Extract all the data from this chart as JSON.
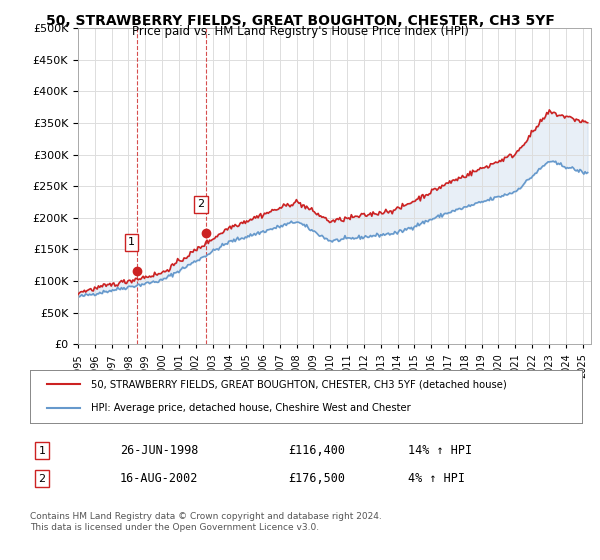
{
  "title": "50, STRAWBERRY FIELDS, GREAT BOUGHTON, CHESTER, CH3 5YF",
  "subtitle": "Price paid vs. HM Land Registry's House Price Index (HPI)",
  "ylabel_ticks": [
    "£0",
    "£50K",
    "£100K",
    "£150K",
    "£200K",
    "£250K",
    "£300K",
    "£350K",
    "£400K",
    "£450K",
    "£500K"
  ],
  "ytick_values": [
    0,
    50000,
    100000,
    150000,
    200000,
    250000,
    300000,
    350000,
    400000,
    450000,
    500000
  ],
  "ylim": [
    0,
    500000
  ],
  "xlim_start": 1995.0,
  "xlim_end": 2025.5,
  "hpi_color": "#6699cc",
  "price_color": "#cc2222",
  "sale1_x": 1998.48,
  "sale1_y": 116400,
  "sale2_x": 2002.62,
  "sale2_y": 176500,
  "sale1_label": "1",
  "sale2_label": "2",
  "legend_line1": "50, STRAWBERRY FIELDS, GREAT BOUGHTON, CHESTER, CH3 5YF (detached house)",
  "legend_line2": "HPI: Average price, detached house, Cheshire West and Chester",
  "table_row1_num": "1",
  "table_row1_date": "26-JUN-1998",
  "table_row1_price": "£116,400",
  "table_row1_hpi": "14% ↑ HPI",
  "table_row2_num": "2",
  "table_row2_date": "16-AUG-2002",
  "table_row2_price": "£176,500",
  "table_row2_hpi": "4% ↑ HPI",
  "footer": "Contains HM Land Registry data © Crown copyright and database right 2024.\nThis data is licensed under the Open Government Licence v3.0.",
  "background_color": "#ffffff",
  "plot_bg_color": "#ffffff",
  "grid_color": "#dddddd",
  "vline1_color": "#cc2222",
  "vline2_color": "#cc2222"
}
